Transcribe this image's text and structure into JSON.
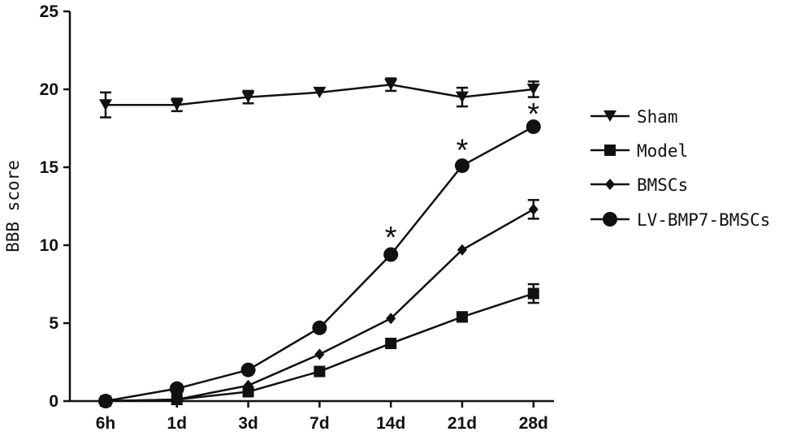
{
  "chart_data": {
    "type": "line",
    "title": "",
    "xlabel": "",
    "ylabel": "BBB score",
    "categories": [
      "6h",
      "1d",
      "3d",
      "7d",
      "14d",
      "21d",
      "28d"
    ],
    "yticks": [
      "0",
      "5",
      "10",
      "15",
      "20",
      "25"
    ],
    "ylim": [
      0,
      25
    ],
    "grid": false,
    "legend_position": "right",
    "series": [
      {
        "name": "Sham",
        "marker": "triangle-down",
        "values": [
          19.0,
          19.0,
          19.5,
          19.8,
          20.3,
          19.5,
          20.0
        ],
        "errors": [
          0.8,
          0.4,
          0.4,
          0.0,
          0.4,
          0.6,
          0.5
        ]
      },
      {
        "name": "Model",
        "marker": "square",
        "values": [
          0.0,
          0.1,
          0.6,
          1.9,
          3.7,
          5.4,
          6.9
        ],
        "errors": [
          0.0,
          0.0,
          0.0,
          0.0,
          0.0,
          0.3,
          0.6
        ]
      },
      {
        "name": "BMSCs",
        "marker": "diamond",
        "values": [
          0.0,
          0.1,
          1.0,
          3.0,
          5.3,
          9.7,
          12.3
        ],
        "errors": [
          0.0,
          0.0,
          0.0,
          0.0,
          0.0,
          0.0,
          0.6
        ]
      },
      {
        "name": "LV-BMP7-BMSCs",
        "marker": "circle",
        "values": [
          0.0,
          0.8,
          2.0,
          4.7,
          9.4,
          15.1,
          17.6
        ],
        "errors": [
          0.0,
          0.0,
          0.0,
          0.0,
          0.0,
          0.0,
          0.0
        ]
      }
    ],
    "annotations": [
      {
        "text": "*",
        "category": "14d",
        "y": 11.0
      },
      {
        "text": "*",
        "category": "21d",
        "y": 16.6
      },
      {
        "text": "*",
        "category": "28d",
        "y": 18.9
      }
    ]
  }
}
